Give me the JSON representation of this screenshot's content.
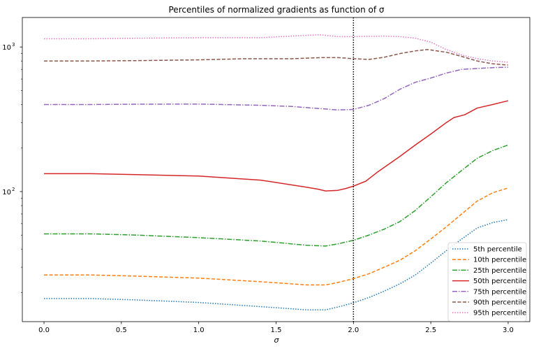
{
  "chart_data": {
    "type": "line",
    "title": "Percentiles of normalized gradients as function of σ",
    "xlabel": "σ",
    "ylabel": "",
    "yscale": "log",
    "xlim": [
      -0.14,
      3.14
    ],
    "ylim": [
      12.6,
      1600
    ],
    "x_ticks": [
      {
        "value": 0.0,
        "label": "0.0"
      },
      {
        "value": 0.5,
        "label": "0.5"
      },
      {
        "value": 1.0,
        "label": "1.0"
      },
      {
        "value": 1.5,
        "label": "1.5"
      },
      {
        "value": 2.0,
        "label": "2.0"
      },
      {
        "value": 2.5,
        "label": "2.5"
      },
      {
        "value": 3.0,
        "label": "3.0"
      }
    ],
    "y_ticks": [
      {
        "value": 100,
        "base": "10",
        "exp": "2"
      },
      {
        "value": 1000,
        "base": "10",
        "exp": "3"
      }
    ],
    "vline": {
      "x": 2.0,
      "style": "dotted",
      "color": "#000000"
    },
    "grid": false,
    "legend_position": "bottom-right",
    "series": [
      {
        "name": "5th percentile",
        "color": "#1f77b4",
        "dash": "1.5,2",
        "x": [
          0.0,
          0.3,
          0.6,
          1.0,
          1.4,
          1.7,
          1.82,
          1.9,
          2.0,
          2.1,
          2.2,
          2.3,
          2.4,
          2.5,
          2.6,
          2.7,
          2.8,
          2.9,
          3.0
        ],
        "y": [
          18.2,
          18.2,
          17.8,
          17.1,
          16.0,
          15.2,
          15.2,
          15.9,
          17.0,
          18.5,
          20.5,
          23.0,
          26.5,
          32.0,
          39.0,
          47.0,
          56.0,
          61.0,
          64.0
        ]
      },
      {
        "name": "10th percentile",
        "color": "#ff7f0e",
        "dash": "5,2.5",
        "x": [
          0.0,
          0.3,
          0.6,
          1.0,
          1.4,
          1.7,
          1.82,
          1.9,
          2.0,
          2.1,
          2.2,
          2.3,
          2.4,
          2.5,
          2.6,
          2.7,
          2.8,
          2.9,
          3.0
        ],
        "y": [
          26.5,
          26.5,
          26.0,
          25.2,
          23.8,
          22.6,
          22.6,
          23.5,
          25.0,
          27.0,
          30.0,
          33.5,
          39.0,
          47.0,
          57.0,
          70.0,
          86.0,
          98.0,
          106.0
        ]
      },
      {
        "name": "25th percentile",
        "color": "#2ca02c",
        "dash": "7,2,1.5,2",
        "x": [
          0.0,
          0.3,
          0.6,
          1.0,
          1.4,
          1.7,
          1.82,
          1.9,
          2.0,
          2.1,
          2.2,
          2.3,
          2.4,
          2.5,
          2.6,
          2.7,
          2.8,
          2.9,
          3.0
        ],
        "y": [
          51.0,
          51.0,
          50.0,
          48.0,
          45.5,
          42.5,
          42.0,
          43.5,
          46.0,
          50.0,
          55.0,
          62.0,
          74.0,
          92.0,
          115.0,
          140.0,
          170.0,
          192.0,
          210.0
        ]
      },
      {
        "name": "50th percentile",
        "color": "#d62728",
        "dash": "",
        "x": [
          0.0,
          0.3,
          0.6,
          1.0,
          1.4,
          1.7,
          1.77,
          1.82,
          1.9,
          1.95,
          2.0,
          2.08,
          2.15,
          2.3,
          2.4,
          2.5,
          2.6,
          2.65,
          2.72,
          2.8,
          2.9,
          3.0
        ],
        "y": [
          133.0,
          133.0,
          131.0,
          128.0,
          120.0,
          107.0,
          104.0,
          101.0,
          102.0,
          105.0,
          109.0,
          118.0,
          135.0,
          175.0,
          210.0,
          250.0,
          300.0,
          325.0,
          340.0,
          378.0,
          400.0,
          425.0
        ]
      },
      {
        "name": "75th percentile",
        "color": "#9467bd",
        "dash": "7,2,1.5,2",
        "x": [
          0.0,
          0.3,
          0.6,
          1.0,
          1.4,
          1.6,
          1.75,
          1.9,
          2.0,
          2.1,
          2.2,
          2.3,
          2.4,
          2.5,
          2.6,
          2.7,
          2.8,
          2.9,
          3.0
        ],
        "y": [
          400.0,
          400.0,
          402.0,
          403.0,
          395.0,
          388.0,
          377.0,
          367.0,
          370.0,
          395.0,
          440.0,
          510.0,
          570.0,
          610.0,
          660.0,
          700.0,
          710.0,
          720.0,
          725.0
        ]
      },
      {
        "name": "90th percentile",
        "color": "#8c564b",
        "dash": "5,2.5",
        "x": [
          0.0,
          0.3,
          0.6,
          1.0,
          1.3,
          1.6,
          1.8,
          1.9,
          2.0,
          2.1,
          2.2,
          2.3,
          2.4,
          2.48,
          2.6,
          2.7,
          2.8,
          2.9,
          3.0
        ],
        "y": [
          800.0,
          800.0,
          805.0,
          815.0,
          830.0,
          830.0,
          845.0,
          845.0,
          830.0,
          820.0,
          850.0,
          900.0,
          940.0,
          960.0,
          920.0,
          860.0,
          800.0,
          765.0,
          750.0
        ]
      },
      {
        "name": "95th percentile",
        "color": "#e377c2",
        "dash": "1.5,2",
        "x": [
          0.0,
          0.3,
          0.6,
          1.0,
          1.4,
          1.6,
          1.78,
          1.9,
          2.0,
          2.1,
          2.2,
          2.3,
          2.4,
          2.5,
          2.6,
          2.7,
          2.8,
          2.9,
          3.0
        ],
        "y": [
          1140.0,
          1140.0,
          1150.0,
          1160.0,
          1160.0,
          1190.0,
          1215.0,
          1180.0,
          1180.0,
          1185.0,
          1190.0,
          1180.0,
          1150.0,
          1080.0,
          960.0,
          880.0,
          830.0,
          800.0,
          785.0
        ]
      }
    ]
  }
}
